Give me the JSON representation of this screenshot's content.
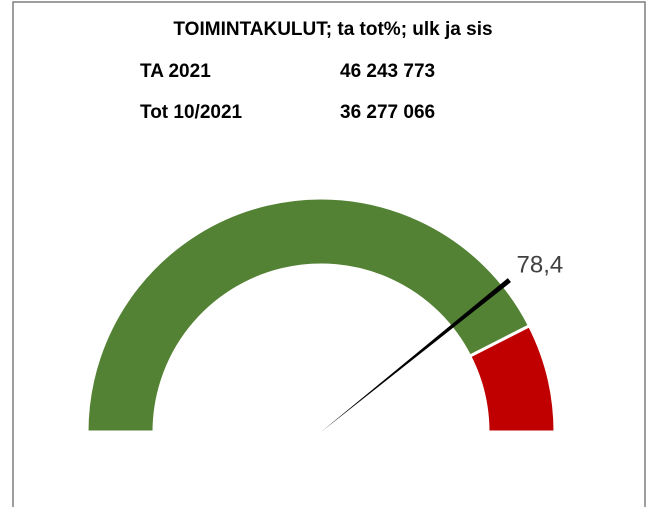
{
  "header": {
    "title": "TOIMINTAKULUT; ta tot%; ulk ja sis",
    "rows": [
      [
        "TA 2021",
        "46 243 773"
      ],
      [
        "Tot 10/2021",
        "36 277 066"
      ]
    ]
  },
  "chart_data": {
    "type": "gauge",
    "ylim": [
      0,
      100
    ],
    "bands": [
      {
        "from": 0,
        "to": 85,
        "color": "#548235"
      },
      {
        "from": 85,
        "to": 100,
        "color": "#c00000"
      }
    ],
    "value": 78.4,
    "value_label": "78,4",
    "needle_color": "#000000"
  }
}
